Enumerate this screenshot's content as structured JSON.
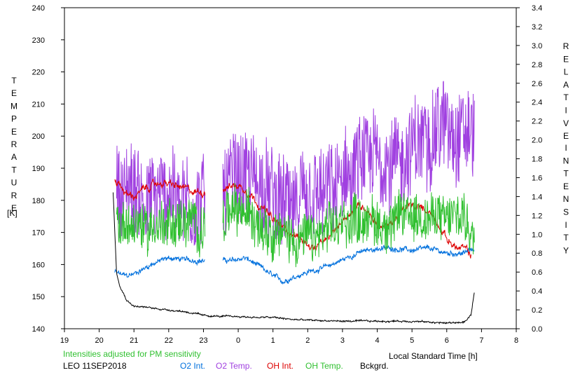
{
  "chart_data": {
    "type": "line",
    "xlabel": "Local Standard Time [h]",
    "x_ticks": [
      "19",
      "20",
      "21",
      "22",
      "23",
      "0",
      "1",
      "2",
      "3",
      "4",
      "5",
      "6",
      "7",
      "8"
    ],
    "left_axis": {
      "label_letters": [
        "T",
        "E",
        "M",
        "P",
        "E",
        "R",
        "A",
        "T",
        "U",
        "R",
        "E"
      ],
      "unit": "[K]",
      "range": [
        140,
        240
      ],
      "ticks": [
        "140",
        "150",
        "160",
        "170",
        "180",
        "190",
        "200",
        "210",
        "220",
        "230",
        "240"
      ]
    },
    "right_axis": {
      "label_word1": [
        "R",
        "E",
        "L",
        "A",
        "T",
        "I",
        "V",
        "E"
      ],
      "label_word2": [
        "I",
        "N",
        "T",
        "E",
        "N",
        "S",
        "I",
        "T",
        "Y"
      ],
      "range": [
        0.0,
        3.4
      ],
      "ticks": [
        "0.0",
        "0.2",
        "0.4",
        "0.6",
        "0.8",
        "1.0",
        "1.2",
        "1.4",
        "1.6",
        "1.8",
        "2.0",
        "2.2",
        "2.4",
        "2.6",
        "2.8",
        "3.0",
        "3.2",
        "3.4"
      ]
    },
    "note": "Intensities adjusted for PM sensitivity",
    "station": "LEO 11SEP2018",
    "x_range_hours_after_19": [
      0,
      13
    ],
    "series": [
      {
        "name": "O2 Int.",
        "axis": "right",
        "color": "#0070dd",
        "noise": 0.02,
        "jitter": 0.02,
        "points": [
          [
            20.45,
            0.6
          ],
          [
            20.6,
            0.58
          ],
          [
            20.8,
            0.56
          ],
          [
            21.0,
            0.58
          ],
          [
            21.3,
            0.64
          ],
          [
            21.6,
            0.7
          ],
          [
            22.0,
            0.75
          ],
          [
            22.5,
            0.73
          ],
          [
            23.0,
            0.72
          ],
          [
            23.3,
            0.73
          ],
          [
            23.8,
            0.72
          ],
          [
            24.2,
            0.75
          ],
          [
            24.6,
            0.66
          ],
          [
            25.0,
            0.56
          ],
          [
            25.3,
            0.5
          ],
          [
            25.6,
            0.55
          ],
          [
            26.0,
            0.6
          ],
          [
            26.5,
            0.65
          ],
          [
            27.0,
            0.73
          ],
          [
            27.5,
            0.81
          ],
          [
            28.0,
            0.85
          ],
          [
            28.5,
            0.85
          ],
          [
            29.0,
            0.83
          ],
          [
            29.5,
            0.85
          ],
          [
            30.0,
            0.8
          ],
          [
            30.5,
            0.8
          ],
          [
            30.8,
            0.85
          ]
        ]
      },
      {
        "name": "O2 Temp.",
        "axis": "left",
        "color": "#a040e0",
        "noise": 4,
        "jitter": 14,
        "points": [
          [
            20.5,
            183
          ],
          [
            21.0,
            183
          ],
          [
            21.5,
            180
          ],
          [
            22.0,
            183
          ],
          [
            22.5,
            180
          ],
          [
            23.0,
            178
          ],
          [
            23.4,
            182
          ],
          [
            23.8,
            188
          ],
          [
            24.2,
            187
          ],
          [
            24.6,
            185
          ],
          [
            25.0,
            180
          ],
          [
            25.4,
            178
          ],
          [
            25.8,
            178
          ],
          [
            26.2,
            180
          ],
          [
            26.6,
            182
          ],
          [
            27.0,
            185
          ],
          [
            27.4,
            190
          ],
          [
            27.8,
            192
          ],
          [
            28.2,
            193
          ],
          [
            28.6,
            192
          ],
          [
            29.0,
            195
          ],
          [
            29.4,
            200
          ],
          [
            29.8,
            203
          ],
          [
            30.2,
            202
          ],
          [
            30.5,
            202
          ],
          [
            30.8,
            200
          ]
        ]
      },
      {
        "name": "OH Int.",
        "axis": "right",
        "color": "#dd0000",
        "noise": 0.04,
        "jitter": 0.02,
        "points": [
          [
            20.45,
            1.58
          ],
          [
            20.55,
            1.55
          ],
          [
            20.8,
            1.42
          ],
          [
            21.0,
            1.4
          ],
          [
            21.4,
            1.5
          ],
          [
            21.8,
            1.55
          ],
          [
            22.3,
            1.5
          ],
          [
            22.7,
            1.45
          ],
          [
            23.0,
            1.45
          ],
          [
            23.5,
            1.5
          ],
          [
            24.0,
            1.52
          ],
          [
            24.3,
            1.45
          ],
          [
            24.6,
            1.32
          ],
          [
            25.0,
            1.15
          ],
          [
            25.4,
            1.05
          ],
          [
            25.8,
            0.95
          ],
          [
            26.2,
            0.85
          ],
          [
            26.6,
            0.95
          ],
          [
            27.0,
            1.15
          ],
          [
            27.4,
            1.3
          ],
          [
            27.7,
            1.28
          ],
          [
            28.0,
            1.1
          ],
          [
            28.3,
            1.08
          ],
          [
            28.6,
            1.2
          ],
          [
            28.9,
            1.3
          ],
          [
            29.2,
            1.28
          ],
          [
            29.5,
            1.25
          ],
          [
            29.8,
            1.1
          ],
          [
            30.0,
            0.95
          ],
          [
            30.3,
            0.85
          ],
          [
            30.5,
            0.85
          ],
          [
            30.7,
            0.78
          ]
        ]
      },
      {
        "name": "OH Temp.",
        "axis": "left",
        "color": "#30c030",
        "noise": 3,
        "jitter": 7,
        "points": [
          [
            20.5,
            173
          ],
          [
            21.0,
            172
          ],
          [
            21.5,
            172
          ],
          [
            22.0,
            173
          ],
          [
            22.5,
            173
          ],
          [
            23.0,
            172
          ],
          [
            23.4,
            173
          ],
          [
            23.8,
            176
          ],
          [
            24.2,
            176
          ],
          [
            24.6,
            174
          ],
          [
            25.0,
            171
          ],
          [
            25.4,
            169
          ],
          [
            25.8,
            168
          ],
          [
            26.2,
            168
          ],
          [
            26.6,
            170
          ],
          [
            27.0,
            173
          ],
          [
            27.4,
            175
          ],
          [
            27.8,
            174
          ],
          [
            28.2,
            172
          ],
          [
            28.6,
            174
          ],
          [
            29.0,
            176
          ],
          [
            29.4,
            175
          ],
          [
            29.8,
            174
          ],
          [
            30.2,
            175
          ],
          [
            30.5,
            175
          ],
          [
            30.8,
            168
          ]
        ]
      },
      {
        "name": "Bckgrd.",
        "axis": "right",
        "color": "#000000",
        "noise": 0.008,
        "jitter": 0.006,
        "points": [
          [
            20.4,
            1.45
          ],
          [
            20.5,
            0.6
          ],
          [
            20.6,
            0.45
          ],
          [
            20.8,
            0.3
          ],
          [
            21.0,
            0.24
          ],
          [
            21.5,
            0.22
          ],
          [
            22.0,
            0.2
          ],
          [
            22.5,
            0.18
          ],
          [
            23.0,
            0.14
          ],
          [
            23.5,
            0.13
          ],
          [
            24.0,
            0.13
          ],
          [
            24.5,
            0.12
          ],
          [
            25.0,
            0.12
          ],
          [
            25.5,
            0.1
          ],
          [
            26.0,
            0.09
          ],
          [
            27.0,
            0.08
          ],
          [
            28.0,
            0.08
          ],
          [
            29.0,
            0.08
          ],
          [
            30.0,
            0.06
          ],
          [
            30.5,
            0.07
          ],
          [
            30.6,
            0.1
          ],
          [
            30.7,
            0.15
          ],
          [
            30.8,
            0.4
          ]
        ]
      }
    ]
  }
}
